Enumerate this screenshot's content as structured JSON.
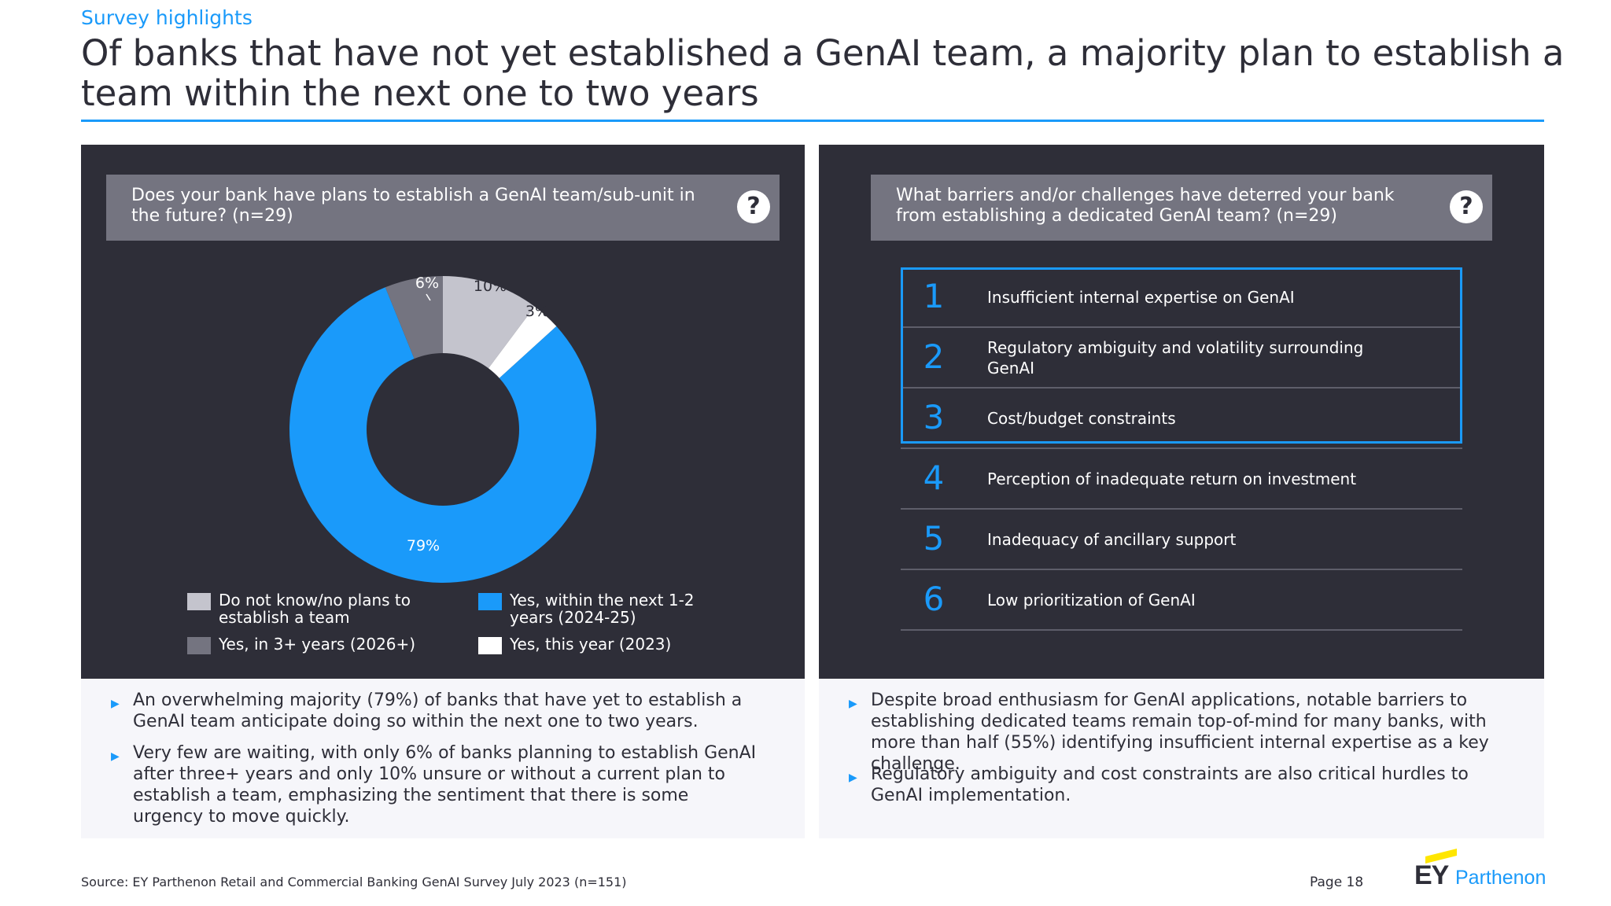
{
  "header": {
    "kicker": "Survey highlights",
    "title": "Of banks that have not yet established a GenAI team, a majority plan to establish a team within the next one to two years"
  },
  "left_panel": {
    "question": "Does your bank have plans to establish a GenAI team/sub-unit in the future? (n=29)",
    "question_icon": "?",
    "legend": [
      {
        "label": "Do not know/no plans to establish a team",
        "color": "#c4c4cd"
      },
      {
        "label": "Yes, within the next 1-2 years (2024-25)",
        "color": "#1a9afa"
      },
      {
        "label": "Yes, in 3+ years (2026+)",
        "color": "#747480"
      },
      {
        "label": "Yes, this year (2023)",
        "color": "#ffffff"
      }
    ]
  },
  "chart_data": {
    "type": "pie",
    "donut": true,
    "categories": [
      "Do not know/no plans to establish a team",
      "Yes, this year (2023)",
      "Yes, within the next 1-2 years (2024-25)",
      "Yes, in 3+ years (2026+)"
    ],
    "values": [
      10,
      3,
      79,
      6
    ],
    "labels": [
      "10%",
      "3%",
      "79%",
      "6%"
    ],
    "colors": [
      "#c4c4cd",
      "#ffffff",
      "#1a9afa",
      "#747480"
    ]
  },
  "right_panel": {
    "question": "What barriers and/or challenges have deterred your bank from establishing a dedicated GenAI team? (n=29)",
    "question_icon": "?",
    "barriers": [
      {
        "rank": "1",
        "text": "Insufficient internal expertise on GenAI"
      },
      {
        "rank": "2",
        "text": "Regulatory ambiguity and volatility surrounding GenAI"
      },
      {
        "rank": "3",
        "text": "Cost/budget constraints"
      },
      {
        "rank": "4",
        "text": "Perception of inadequate return on investment"
      },
      {
        "rank": "5",
        "text": "Inadequacy of ancillary support"
      },
      {
        "rank": "6",
        "text": "Low prioritization of GenAI"
      }
    ]
  },
  "notes_left": [
    "An overwhelming majority (79%) of banks that have yet to establish a GenAI team anticipate doing so within the next one to two years.",
    "Very few are waiting, with only 6% of banks planning to establish GenAI after three+ years and only 10% unsure or without a current plan to establish a team, emphasizing the sentiment that there is some urgency to move quickly."
  ],
  "notes_right": [
    "Despite broad enthusiasm for GenAI applications, notable barriers to establishing dedicated teams remain top-of-mind for many banks, with more than half (55%) identifying insufficient internal expertise as a key challenge.",
    "Regulatory ambiguity and cost constraints are also critical hurdles to GenAI implementation."
  ],
  "footer": {
    "source": "Source: EY Parthenon Retail and Commercial Banking GenAI Survey July 2023 (n=151)",
    "page": "Page 18",
    "logo_ey": "EY",
    "logo_parthenon": "Parthenon"
  }
}
